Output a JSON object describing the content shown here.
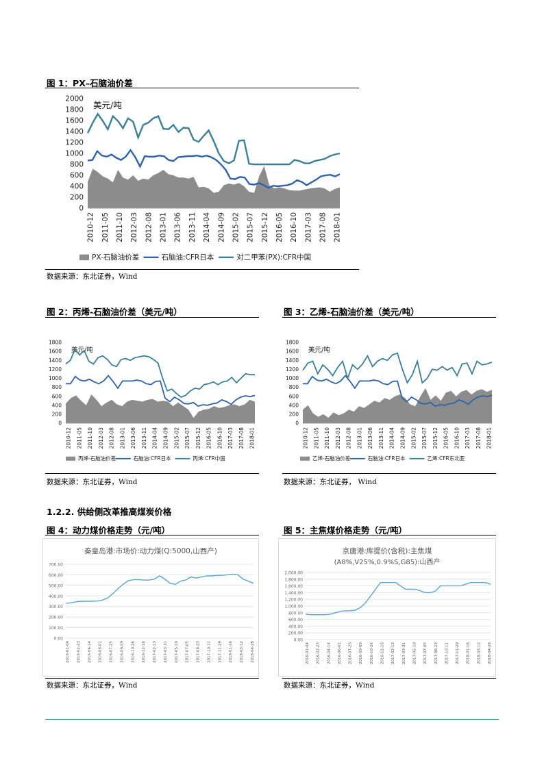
{
  "figure1": {
    "title": "图  1：PX–石脑油价差",
    "source": "数据来源：东北证券，Wind",
    "chart_data": {
      "type": "area",
      "unit_label": "美元/吨",
      "ylim": [
        0,
        2000
      ],
      "yticks": [
        "0",
        "200",
        "400",
        "600",
        "800",
        "1000",
        "1200",
        "1400",
        "1600",
        "1800",
        "2000"
      ],
      "xticks": [
        "2010-12",
        "2011-05",
        "2011-10",
        "2012-03",
        "2012-08",
        "2013-01",
        "2013-06",
        "2013-11",
        "2014-04",
        "2014-09",
        "2015-02",
        "2015-07",
        "2015-12",
        "2016-05",
        "2016-10",
        "2017-03",
        "2017-08",
        "2018-01"
      ],
      "legend": [
        "PX-石脑油价差",
        "石脑油:CFR日本",
        "对二甲苯(PX):CFR中国"
      ],
      "series": [
        {
          "name": "PX-石脑油价差",
          "type": "area",
          "values": [
            480,
            720,
            660,
            580,
            540,
            470,
            700,
            560,
            520,
            600,
            500,
            540,
            520,
            600,
            640,
            700,
            620,
            600,
            560,
            560,
            540,
            570,
            380,
            390,
            360,
            280,
            300,
            420,
            450,
            430,
            460,
            400,
            300,
            280,
            580,
            770,
            420,
            360,
            380,
            360,
            330,
            320,
            320,
            340,
            360,
            370,
            380,
            360,
            300,
            350,
            380
          ]
        },
        {
          "name": "石脑油:CFR日本",
          "type": "line",
          "values": [
            870,
            880,
            1040,
            960,
            940,
            980,
            920,
            880,
            940,
            1060,
            930,
            760,
            950,
            940,
            940,
            960,
            950,
            880,
            860,
            930,
            940,
            950,
            950,
            960,
            940,
            960,
            930,
            880,
            800,
            700,
            540,
            530,
            570,
            560,
            440,
            430,
            460,
            420,
            370,
            410,
            400,
            410,
            420,
            450,
            510,
            480,
            420,
            470,
            520,
            580,
            600,
            610,
            580,
            620
          ]
        },
        {
          "name": "对二甲苯(PX):CFR中国",
          "type": "line",
          "values": [
            1370,
            1560,
            1720,
            1590,
            1440,
            1680,
            1590,
            1460,
            1640,
            1580,
            1290,
            1520,
            1560,
            1640,
            1680,
            1450,
            1440,
            1520,
            1390,
            1470,
            1460,
            1250,
            1210,
            1320,
            1420,
            1220,
            1000,
            860,
            820,
            870,
            1230,
            1240,
            810,
            800,
            800,
            800,
            800,
            800,
            800,
            800,
            800,
            880,
            860,
            820,
            820,
            860,
            880,
            900,
            950,
            980,
            1000
          ]
        }
      ]
    }
  },
  "figure2": {
    "title": "图 2：丙烯-石脑油价差（美元/吨）",
    "source": "数据来源：东北证券，Wind",
    "chart_data": {
      "type": "area",
      "unit_label": "美元/吨",
      "ylim": [
        0,
        1800
      ],
      "yticks": [
        "0",
        "200",
        "400",
        "600",
        "800",
        "1000",
        "1200",
        "1400",
        "1600",
        "1800"
      ],
      "xticks": [
        "2010-12",
        "2011-05",
        "2011-10",
        "2012-03",
        "2012-08",
        "2013-01",
        "2013-06",
        "2013-11",
        "2014-04",
        "2014-09",
        "2015-02",
        "2015-07",
        "2015-12",
        "2016-05",
        "2016-10",
        "2017-03",
        "2017-08",
        "2018-01"
      ],
      "legend": [
        "丙烯-石脑油价差",
        "石脑油:CFR日本",
        "丙烯:CFR中国"
      ],
      "series": [
        {
          "name": "丙烯-石脑油价差",
          "type": "area",
          "values": [
            440,
            560,
            620,
            500,
            400,
            640,
            520,
            380,
            460,
            520,
            420,
            380,
            480,
            520,
            500,
            480,
            520,
            540,
            480,
            500,
            480,
            380,
            460,
            380,
            300,
            120,
            260,
            300,
            320,
            380,
            340,
            360,
            400,
            420,
            380,
            420,
            520,
            480
          ]
        },
        {
          "name": "石脑油:CFR日本",
          "type": "line",
          "values": [
            880,
            880,
            1040,
            960,
            940,
            980,
            920,
            880,
            940,
            1060,
            930,
            780,
            940,
            940,
            940,
            960,
            940,
            880,
            860,
            930,
            940,
            560,
            480,
            580,
            520,
            440,
            430,
            460,
            380,
            410,
            400,
            430,
            450,
            520,
            480,
            420,
            520,
            580,
            610,
            590,
            620
          ]
        },
        {
          "name": "丙烯:CFR中国",
          "type": "line",
          "values": [
            1320,
            1400,
            1640,
            1520,
            1620,
            1380,
            1320,
            1460,
            1500,
            1420,
            1300,
            1260,
            1420,
            1440,
            1400,
            1460,
            1480,
            1500,
            1480,
            1420,
            1340,
            1000,
            720,
            760,
            660,
            580,
            620,
            720,
            780,
            760,
            860,
            880,
            920,
            860,
            920,
            940,
            1020,
            900,
            1000,
            1100,
            1080,
            1080
          ]
        }
      ]
    }
  },
  "figure3": {
    "title": "图 3：乙烯-石脑油价差（美元/吨）",
    "source": "数据来源：东北证券，  Wind",
    "chart_data": {
      "type": "area",
      "unit_label": "美元/吨",
      "ylim": [
        0,
        1800
      ],
      "yticks": [
        "0",
        "200",
        "400",
        "600",
        "800",
        "1000",
        "1200",
        "1400",
        "1600",
        "1800"
      ],
      "xticks": [
        "2010-12",
        "2011-05",
        "2011-10",
        "2012-03",
        "2012-08",
        "2013-01",
        "2013-06",
        "2013-11",
        "2014-04",
        "2014-09",
        "2015-02",
        "2015-07",
        "2015-12",
        "2016-05",
        "2016-10",
        "2017-03",
        "2017-08",
        "2018-01"
      ],
      "legend": [
        "乙烯-石脑油价差",
        "石脑油:CFR日本",
        "乙烯:CFR东北亚"
      ],
      "series": [
        {
          "name": "乙烯-石脑油价差",
          "type": "area",
          "values": [
            300,
            400,
            220,
            140,
            200,
            120,
            240,
            180,
            220,
            300,
            260,
            380,
            340,
            420,
            500,
            460,
            560,
            520,
            600,
            640,
            560,
            420,
            380,
            600,
            780,
            520,
            620,
            500,
            680,
            720,
            600,
            700,
            740,
            640,
            720,
            760,
            700,
            740
          ]
        },
        {
          "name": "石脑油:CFR日本",
          "type": "line",
          "values": [
            880,
            880,
            1040,
            960,
            940,
            980,
            920,
            880,
            940,
            1060,
            930,
            780,
            940,
            940,
            940,
            960,
            940,
            880,
            860,
            930,
            940,
            560,
            480,
            580,
            520,
            440,
            430,
            460,
            380,
            410,
            400,
            430,
            450,
            520,
            480,
            420,
            520,
            580,
            610,
            590,
            620
          ]
        },
        {
          "name": "乙烯:CFR东北亚",
          "type": "line",
          "values": [
            1180,
            1340,
            1380,
            1100,
            1300,
            1200,
            1060,
            1240,
            1380,
            1000,
            1300,
            1200,
            1320,
            1500,
            1260,
            1380,
            1440,
            1400,
            1520,
            1560,
            1200,
            900,
            1080,
            1380,
            900,
            1000,
            1200,
            1180,
            1260,
            1180,
            1240,
            1060,
            1320,
            1340,
            1100,
            1380,
            1300,
            1320,
            1360
          ]
        }
      ]
    }
  },
  "section": {
    "heading": "1.2.2. 供给侧改革推高煤炭价格"
  },
  "figure4": {
    "title": "图   4：动力煤价格走势（元/吨）",
    "source": "数据来源：东北证券，Wind",
    "chart_data": {
      "type": "line",
      "title": "秦皇岛港:市场价:动力煤(Q:5000,山西产)",
      "ylim": [
        0,
        700
      ],
      "yticks": [
        "0.00",
        "100.00",
        "200.00",
        "300.00",
        "400.00",
        "500.00",
        "600.00",
        "700.00"
      ],
      "xticks": [
        "2016-01-04",
        "2016-02-23",
        "2016-04-14",
        "2016-06-01",
        "2016-07-25",
        "2016-09-09",
        "2016-10-26",
        "2016-12-16",
        "2017-02-13",
        "2017-03-31",
        "2017-05-19",
        "2017-07-05",
        "2017-08-23",
        "2017-10-11",
        "2017-11-29",
        "2018-01-16",
        "2018-03-12",
        "2018-04-28"
      ],
      "series": [
        {
          "name": "秦皇岛港:市场价:动力煤(Q:5000,山西产)",
          "values": [
            330,
            335,
            345,
            350,
            350,
            350,
            352,
            360,
            380,
            420,
            470,
            510,
            545,
            555,
            555,
            550,
            550,
            560,
            590,
            560,
            520,
            510,
            540,
            550,
            580,
            570,
            580,
            590,
            590,
            595,
            595,
            600,
            605,
            600,
            560,
            540,
            520
          ]
        }
      ]
    }
  },
  "figure5": {
    "title": "图   5：主焦煤价格走势（元/吨）",
    "source": "数据来源：东北证券，Wind",
    "chart_data": {
      "type": "line",
      "title": "京唐港:库提价(含税):主焦煤",
      "subtitle": "(A8%,V25%,0.9%S,G85):山西产",
      "ylim": [
        0,
        2000
      ],
      "yticks": [
        "0.00",
        "200.00",
        "400.00",
        "600.00",
        "800.00",
        "1,000.00",
        "1,200.00",
        "1,400.00",
        "1,600.00",
        "1,800.00",
        "2,000.00"
      ],
      "xticks": [
        "2016-01-04",
        "2016-02-23",
        "2016-04-14",
        "2016-06-01",
        "2016-07-25",
        "2016-09-09",
        "2016-10-26",
        "2016-12-16",
        "2017-02-13",
        "2017-03-31",
        "2017-05-19",
        "2017-07-05",
        "2017-08-23",
        "2017-10-11",
        "2017-11-29",
        "2018-01-16",
        "2018-03-12",
        "2018-04-28"
      ],
      "series": [
        {
          "name": "京唐港:库提价(含税):主焦煤",
          "values": [
            760,
            740,
            740,
            740,
            740,
            760,
            800,
            840,
            860,
            860,
            880,
            960,
            1100,
            1300,
            1500,
            1700,
            1700,
            1700,
            1700,
            1600,
            1500,
            1500,
            1500,
            1450,
            1400,
            1400,
            1450,
            1600,
            1600,
            1600,
            1600,
            1600,
            1650,
            1700,
            1700,
            1700,
            1700,
            1650
          ]
        }
      ]
    }
  },
  "colors": {
    "area": "#8c8c8c",
    "line_dark": "#2f62a8",
    "line_teal": "#3b7f97",
    "coal_line": "#5aa5d8",
    "footer": "#3b8a86"
  }
}
